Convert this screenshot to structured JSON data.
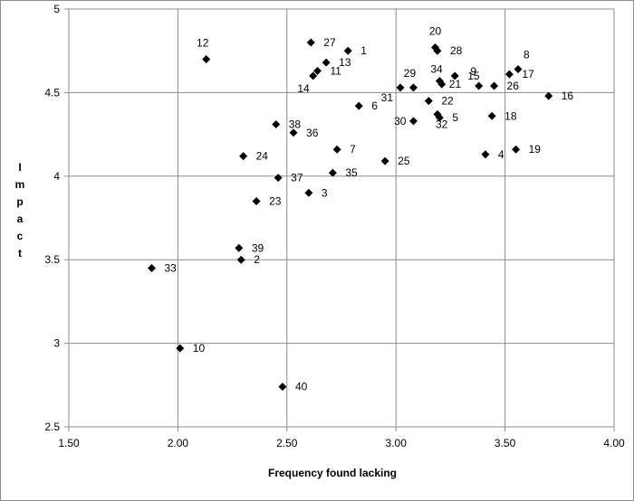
{
  "chart_data": {
    "type": "scatter",
    "xlabel": "Frequency found lacking",
    "ylabel": "Impact",
    "xlim": [
      1.5,
      4.0
    ],
    "ylim": [
      2.5,
      5.0
    ],
    "x_ticks": [
      "1.50",
      "2.00",
      "2.50",
      "3.00",
      "3.50",
      "4.00"
    ],
    "y_ticks": [
      "2.5",
      "3",
      "3.5",
      "4",
      "4.5",
      "5"
    ],
    "grid": true,
    "marker_color": "#000000",
    "points": [
      {
        "label": "1",
        "x": 2.78,
        "y": 4.75
      },
      {
        "label": "2",
        "x": 2.29,
        "y": 3.5
      },
      {
        "label": "3",
        "x": 2.6,
        "y": 3.9
      },
      {
        "label": "4",
        "x": 3.41,
        "y": 4.13
      },
      {
        "label": "5",
        "x": 3.2,
        "y": 4.35
      },
      {
        "label": "6",
        "x": 2.83,
        "y": 4.42
      },
      {
        "label": "7",
        "x": 2.73,
        "y": 4.16
      },
      {
        "label": "8",
        "x": 3.56,
        "y": 4.64
      },
      {
        "label": "9",
        "x": 3.38,
        "y": 4.54
      },
      {
        "label": "10",
        "x": 2.01,
        "y": 2.97
      },
      {
        "label": "11",
        "x": 2.64,
        "y": 4.63
      },
      {
        "label": "12",
        "x": 2.13,
        "y": 4.7
      },
      {
        "label": "13",
        "x": 2.68,
        "y": 4.68
      },
      {
        "label": "14",
        "x": 2.62,
        "y": 4.6
      },
      {
        "label": "15",
        "x": 3.27,
        "y": 4.6
      },
      {
        "label": "16",
        "x": 3.7,
        "y": 4.48
      },
      {
        "label": "17",
        "x": 3.52,
        "y": 4.61
      },
      {
        "label": "18",
        "x": 3.44,
        "y": 4.36
      },
      {
        "label": "19",
        "x": 3.55,
        "y": 4.16
      },
      {
        "label": "20",
        "x": 3.18,
        "y": 4.77
      },
      {
        "label": "21",
        "x": 3.21,
        "y": 4.55
      },
      {
        "label": "22",
        "x": 3.15,
        "y": 4.45
      },
      {
        "label": "23",
        "x": 2.36,
        "y": 3.85
      },
      {
        "label": "24",
        "x": 2.3,
        "y": 4.12
      },
      {
        "label": "25",
        "x": 2.95,
        "y": 4.09
      },
      {
        "label": "26",
        "x": 3.45,
        "y": 4.54
      },
      {
        "label": "27",
        "x": 2.61,
        "y": 4.8
      },
      {
        "label": "28",
        "x": 3.19,
        "y": 4.75
      },
      {
        "label": "29",
        "x": 3.08,
        "y": 4.53
      },
      {
        "label": "30",
        "x": 3.08,
        "y": 4.33
      },
      {
        "label": "31",
        "x": 3.02,
        "y": 4.53
      },
      {
        "label": "32",
        "x": 3.19,
        "y": 4.37
      },
      {
        "label": "33",
        "x": 1.88,
        "y": 3.45
      },
      {
        "label": "34",
        "x": 3.2,
        "y": 4.57
      },
      {
        "label": "35",
        "x": 2.71,
        "y": 4.02
      },
      {
        "label": "36",
        "x": 2.53,
        "y": 4.26
      },
      {
        "label": "37",
        "x": 2.46,
        "y": 3.99
      },
      {
        "label": "38",
        "x": 2.45,
        "y": 4.31
      },
      {
        "label": "39",
        "x": 2.28,
        "y": 3.57
      },
      {
        "label": "40",
        "x": 2.48,
        "y": 2.74
      }
    ]
  }
}
